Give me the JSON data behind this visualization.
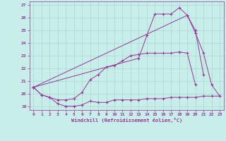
{
  "xlabel": "Windchill (Refroidissement éolien,°C)",
  "background_color": "#c8eeea",
  "grid_color": "#a8d8d0",
  "line_color": "#993399",
  "xlim": [
    -0.5,
    23.5
  ],
  "ylim": [
    18.7,
    27.3
  ],
  "yticks": [
    19,
    20,
    21,
    22,
    23,
    24,
    25,
    26,
    27
  ],
  "xticks": [
    0,
    1,
    2,
    3,
    4,
    5,
    6,
    7,
    8,
    9,
    10,
    11,
    12,
    13,
    14,
    15,
    16,
    17,
    18,
    19,
    20,
    21,
    22,
    23
  ],
  "series": [
    {
      "x": [
        0,
        1,
        2,
        3,
        4,
        5,
        6,
        7,
        8,
        9,
        10,
        11,
        12,
        13,
        14,
        15,
        16,
        17,
        18,
        19,
        20,
        21,
        22,
        23
      ],
      "y": [
        20.5,
        19.9,
        19.7,
        19.2,
        19.0,
        19.0,
        19.1,
        19.4,
        19.3,
        19.3,
        19.5,
        19.5,
        19.5,
        19.5,
        19.6,
        19.6,
        19.6,
        19.7,
        19.7,
        19.7,
        19.7,
        19.8,
        19.8,
        19.8
      ]
    },
    {
      "x": [
        0,
        1,
        2,
        3,
        4,
        5,
        6,
        7,
        8,
        9,
        10,
        11,
        12,
        13,
        14,
        15,
        16,
        17,
        18,
        19,
        20
      ],
      "y": [
        20.5,
        19.9,
        19.7,
        19.5,
        19.5,
        19.6,
        20.1,
        21.1,
        21.5,
        22.1,
        22.2,
        22.6,
        23.0,
        23.1,
        23.2,
        23.2,
        23.2,
        23.2,
        23.3,
        23.2,
        20.7
      ]
    },
    {
      "x": [
        0,
        13,
        14,
        15,
        16,
        17,
        18,
        19,
        20,
        21
      ],
      "y": [
        20.5,
        22.8,
        24.6,
        26.3,
        26.3,
        26.3,
        26.8,
        26.2,
        25.0,
        21.5
      ]
    },
    {
      "x": [
        0,
        19,
        20,
        21,
        22,
        23
      ],
      "y": [
        20.5,
        26.2,
        24.8,
        23.2,
        20.7,
        19.8
      ]
    }
  ]
}
